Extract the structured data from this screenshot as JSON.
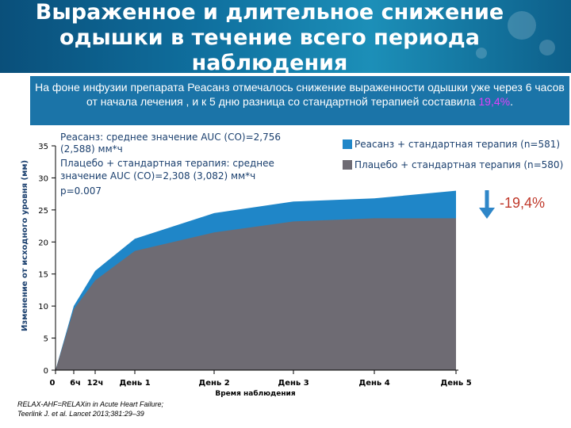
{
  "header": {
    "title": "Выраженное и длительное снижение одышки в течение всего периода наблюдения"
  },
  "subtitle": {
    "text": "На фоне инфузии препарата Реасанз отмечалось снижение выраженности одышки уже через 6 часов от начала лечения , и к 5 дню разница со стандартной терапией составила ",
    "highlight": "19,4%",
    "tail": "."
  },
  "chart_data": {
    "type": "area",
    "xlabel": "Время наблюдения",
    "ylabel": "Изменение от исходного уровня (мм)",
    "ylim": [
      0,
      35
    ],
    "yticks": [
      "0",
      "5",
      "10",
      "15",
      "20",
      "25",
      "30",
      "35"
    ],
    "xticks": [
      "0",
      "6ч",
      "12ч",
      "День 1",
      "День 2",
      "День 3",
      "День 4",
      "День 5"
    ],
    "x": [
      0,
      0.25,
      0.5,
      1,
      2,
      3,
      4,
      5
    ],
    "series": [
      {
        "name": "Реасанз + стандартная терапия (n=581)",
        "color": "#1f86c8",
        "values": [
          0,
          10.0,
          15.5,
          20.5,
          24.5,
          26.3,
          26.8,
          28.0
        ]
      },
      {
        "name": "Плацебо + стандартная терапия (n=580)",
        "color": "#6e6b73",
        "values": [
          0,
          9.5,
          14.0,
          18.6,
          21.5,
          23.2,
          23.7,
          23.7
        ]
      }
    ],
    "annotations": [
      "Реасанз: среднее значение AUC (СО)=2,756 (2,588) мм*ч",
      "Плацебо + стандартная терапия: среднее значение AUC (СО)=2,308 (3,082) мм*ч",
      "p=0.007"
    ],
    "delta_label": "-19,4%",
    "legend_position": "top-right",
    "grid": false
  },
  "footnote": {
    "line1": "RELAX-AHF=RELAXin in Acute Heart Failure;",
    "line2": "Teerlink J. et al. Lancet 2013;381:29–39"
  }
}
